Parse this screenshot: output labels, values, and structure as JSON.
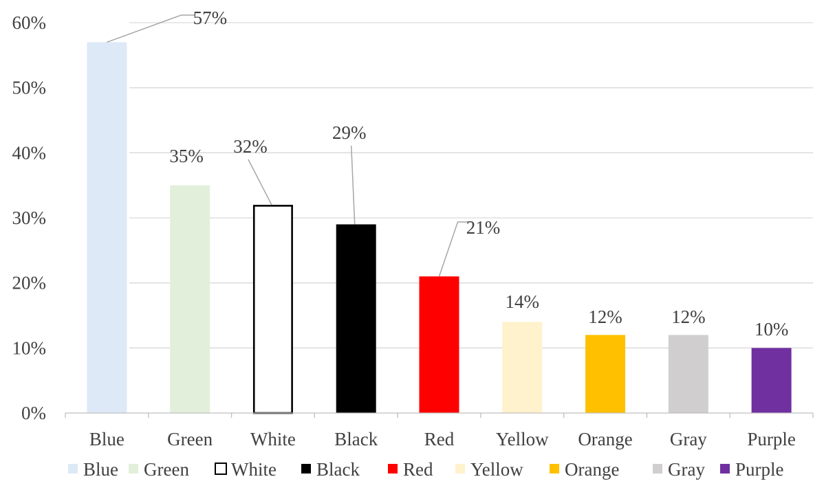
{
  "chart_data": {
    "type": "bar",
    "categories": [
      "Blue",
      "Green",
      "White",
      "Black",
      "Red",
      "Yellow",
      "Orange",
      "Gray",
      "Purple"
    ],
    "values": [
      57,
      35,
      32,
      29,
      21,
      14,
      12,
      12,
      10
    ],
    "data_labels": [
      "57%",
      "35%",
      "32%",
      "29%",
      "21%",
      "14%",
      "12%",
      "12%",
      "10%"
    ],
    "colors": [
      "#dde9f7",
      "#e2efda",
      "#ffffff",
      "#000000",
      "#ff0000",
      "#fff2cc",
      "#ffc000",
      "#d0cece",
      "#7030a0"
    ],
    "outline_colors": [
      "none",
      "none",
      "#000000",
      "none",
      "none",
      "none",
      "none",
      "none",
      "none"
    ],
    "y_ticks": [
      0,
      10,
      20,
      30,
      40,
      50,
      60
    ],
    "y_tick_labels": [
      "0%",
      "10%",
      "20%",
      "30%",
      "40%",
      "50%",
      "60%"
    ],
    "ylim": [
      0,
      60
    ],
    "title": "",
    "xlabel": "",
    "ylabel": "",
    "grid": true,
    "legend": {
      "position": "bottom",
      "entries": [
        "Blue",
        "Green",
        "White",
        "Black",
        "Red",
        "Yellow",
        "Orange",
        "Gray",
        "Purple"
      ]
    }
  }
}
